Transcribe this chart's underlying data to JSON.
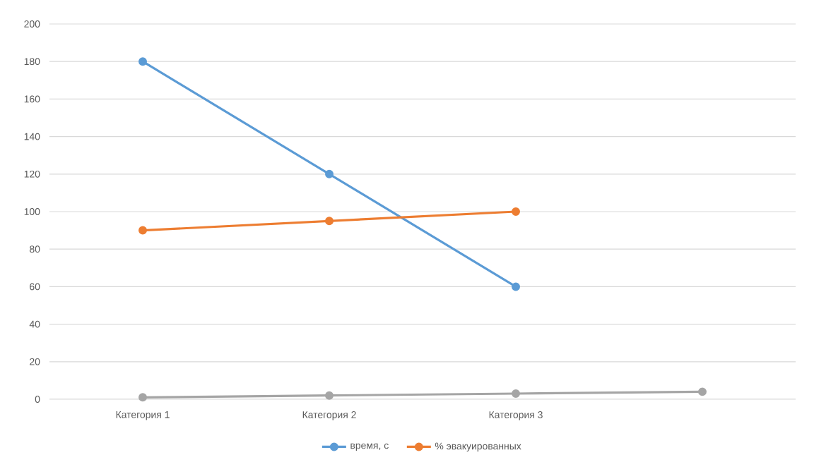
{
  "chart_data": {
    "type": "line",
    "categories": [
      "Категория 1",
      "Категория 2",
      "Категория 3",
      null
    ],
    "series": [
      {
        "name": "время, с",
        "color": "#5b9bd5",
        "values": [
          180,
          120,
          60,
          null
        ]
      },
      {
        "name": "% эвакуированных",
        "color": "#ed7d31",
        "values": [
          90,
          95,
          100,
          null
        ]
      },
      {
        "color": "#a5a5a5",
        "values": [
          1,
          2,
          3,
          4
        ]
      }
    ],
    "ylim": [
      0,
      200
    ],
    "yticks": [
      0,
      20,
      40,
      60,
      80,
      100,
      120,
      140,
      160,
      180,
      200
    ],
    "grid": "y",
    "legend": "bottom",
    "marker": "circle"
  }
}
